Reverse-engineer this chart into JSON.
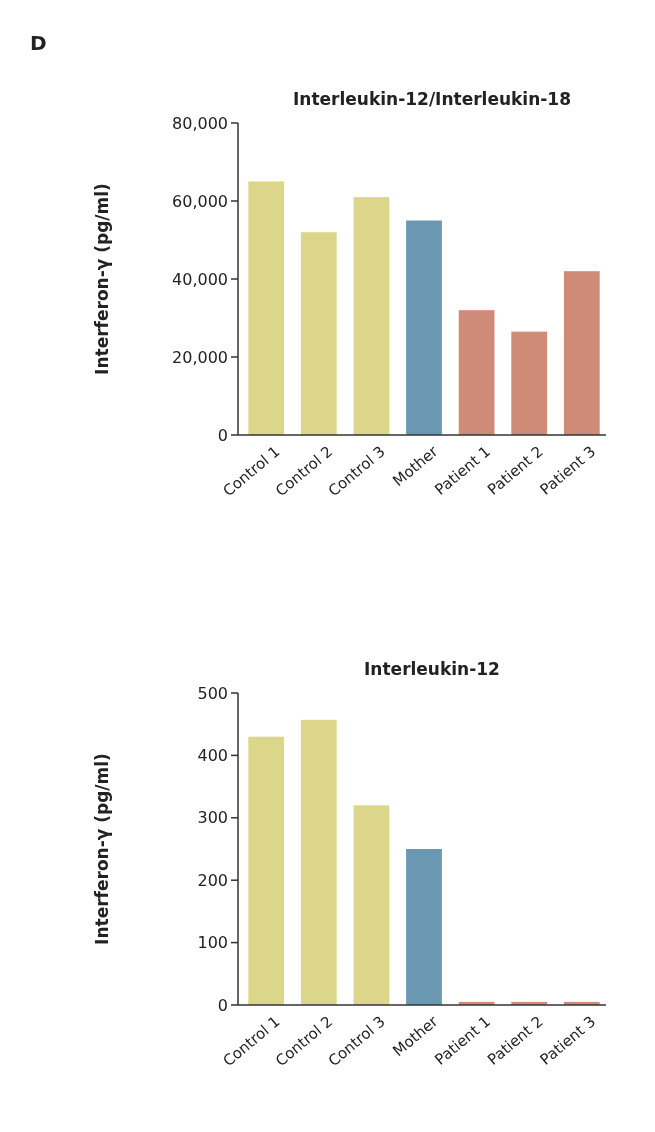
{
  "chart_data": [
    {
      "type": "bar",
      "title": "Interleukin-12/Interleukin-18",
      "ylabel": "Interferon-γ (pg/ml)",
      "annotations": [
        "D"
      ],
      "categories": [
        "Control 1",
        "Control 2",
        "Control 3",
        "Mother",
        "Patient 1",
        "Patient 2",
        "Patient 3"
      ],
      "values": [
        65000,
        52000,
        61000,
        55000,
        32000,
        26500,
        42000
      ],
      "colors": [
        "#dcd68a",
        "#dcd68a",
        "#dcd68a",
        "#6a97b2",
        "#cf8a78",
        "#cf8a78",
        "#cf8a78"
      ],
      "ylim": [
        0,
        80000
      ],
      "yticks": [
        0,
        {
          "value": 20000,
          "label": "20,000"
        },
        {
          "value": 40000,
          "label": "40,000"
        },
        {
          "value": 60000,
          "label": "60,000"
        },
        {
          "value": 80000,
          "label": "80,000"
        }
      ],
      "grid": false
    },
    {
      "type": "bar",
      "title": "Interleukin-12",
      "ylabel": "Interferon-γ (pg/ml)",
      "categories": [
        "Control 1",
        "Control 2",
        "Control 3",
        "Mother",
        "Patient 1",
        "Patient 2",
        "Patient 3"
      ],
      "values": [
        430,
        457,
        320,
        250,
        5,
        5,
        5
      ],
      "colors": [
        "#dcd68a",
        "#dcd68a",
        "#dcd68a",
        "#6a97b2",
        "#cf8a78",
        "#cf8a78",
        "#cf8a78"
      ],
      "ylim": [
        0,
        500
      ],
      "yticks": [
        0,
        100,
        200,
        300,
        400,
        500
      ],
      "grid": false
    }
  ]
}
